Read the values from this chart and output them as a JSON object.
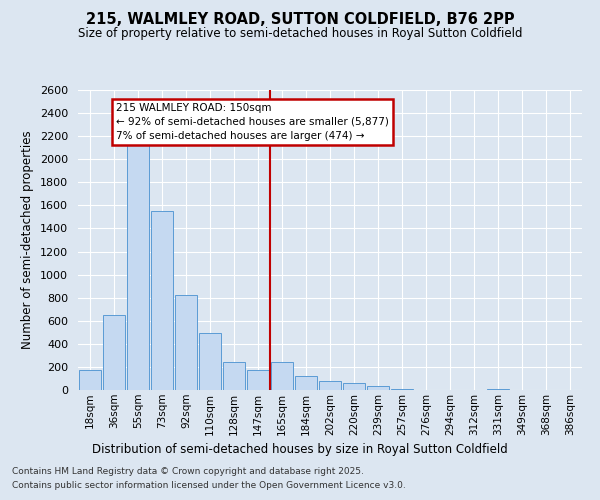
{
  "title1": "215, WALMLEY ROAD, SUTTON COLDFIELD, B76 2PP",
  "title2": "Size of property relative to semi-detached houses in Royal Sutton Coldfield",
  "xlabel": "Distribution of semi-detached houses by size in Royal Sutton Coldfield",
  "ylabel": "Number of semi-detached properties",
  "categories": [
    "18sqm",
    "36sqm",
    "55sqm",
    "73sqm",
    "92sqm",
    "110sqm",
    "128sqm",
    "147sqm",
    "165sqm",
    "184sqm",
    "202sqm",
    "220sqm",
    "239sqm",
    "257sqm",
    "276sqm",
    "294sqm",
    "312sqm",
    "331sqm",
    "349sqm",
    "368sqm",
    "386sqm"
  ],
  "values": [
    170,
    650,
    2150,
    1550,
    820,
    490,
    240,
    175,
    240,
    120,
    75,
    65,
    35,
    10,
    0,
    0,
    0,
    10,
    0,
    0,
    0
  ],
  "bar_color": "#c5d9f1",
  "bar_edge_color": "#5b9bd5",
  "vline_color": "#c00000",
  "annotation_line1": "215 WALMLEY ROAD: 150sqm",
  "annotation_line2": "← 92% of semi-detached houses are smaller (5,877)",
  "annotation_line3": "7% of semi-detached houses are larger (474) →",
  "annotation_box_color": "#ffffff",
  "annotation_box_edge": "#c00000",
  "ylim_max": 2600,
  "ytick_step": 200,
  "bg_color": "#dce6f1",
  "grid_color": "#ffffff",
  "footer1": "Contains HM Land Registry data © Crown copyright and database right 2025.",
  "footer2": "Contains public sector information licensed under the Open Government Licence v3.0."
}
